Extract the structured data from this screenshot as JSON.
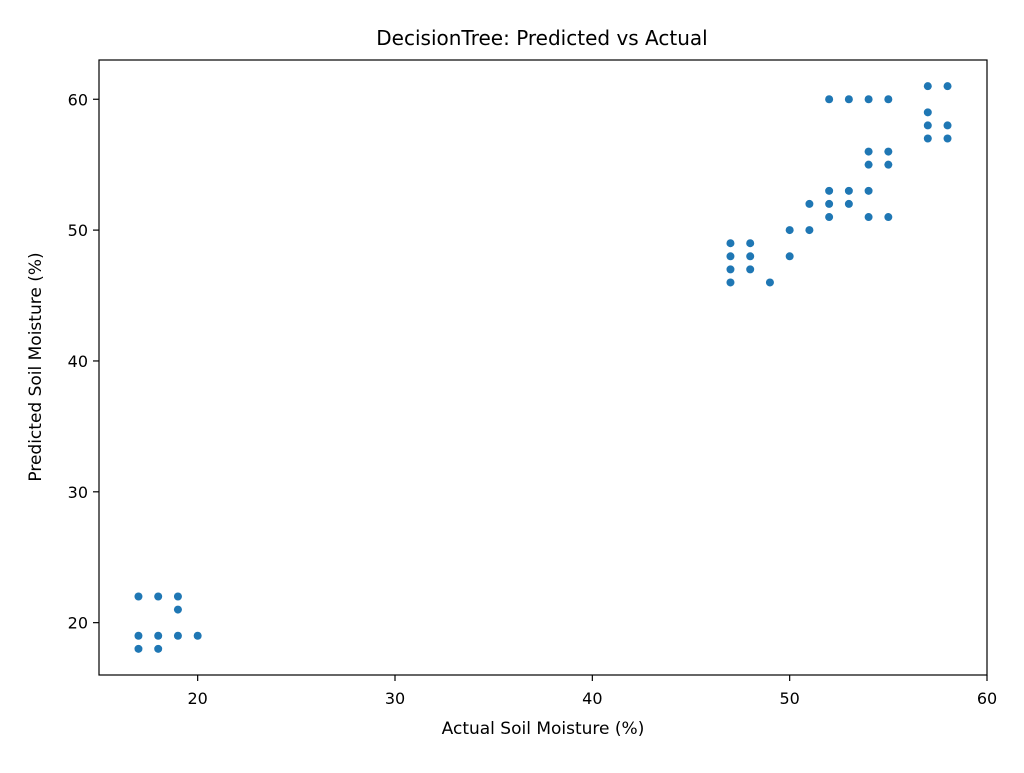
{
  "chart_data": {
    "type": "scatter",
    "title": "DecisionTree: Predicted vs Actual",
    "xlabel": "Actual Soil Moisture (%)",
    "ylabel": "Predicted Soil Moisture (%)",
    "xlim": [
      15,
      60
    ],
    "ylim": [
      16,
      63
    ],
    "xticks": [
      20,
      30,
      40,
      50,
      60
    ],
    "yticks": [
      20,
      30,
      40,
      50,
      60
    ],
    "grid": false,
    "marker_color": "#1f77b4",
    "series": [
      {
        "points": [
          [
            17,
            22
          ],
          [
            17,
            19
          ],
          [
            17,
            18
          ],
          [
            18,
            22
          ],
          [
            18,
            19
          ],
          [
            18,
            18
          ],
          [
            19,
            22
          ],
          [
            19,
            21
          ],
          [
            19,
            19
          ],
          [
            20,
            19
          ],
          [
            47,
            49
          ],
          [
            47,
            48
          ],
          [
            47,
            47
          ],
          [
            47,
            46
          ],
          [
            48,
            49
          ],
          [
            48,
            48
          ],
          [
            48,
            47
          ],
          [
            49,
            46
          ],
          [
            50,
            50
          ],
          [
            50,
            48
          ],
          [
            51,
            52
          ],
          [
            51,
            50
          ],
          [
            52,
            60
          ],
          [
            52,
            53
          ],
          [
            52,
            52
          ],
          [
            52,
            51
          ],
          [
            53,
            60
          ],
          [
            53,
            53
          ],
          [
            53,
            52
          ],
          [
            54,
            60
          ],
          [
            54,
            56
          ],
          [
            54,
            55
          ],
          [
            54,
            53
          ],
          [
            54,
            51
          ],
          [
            55,
            60
          ],
          [
            55,
            56
          ],
          [
            55,
            55
          ],
          [
            55,
            51
          ],
          [
            57,
            61
          ],
          [
            57,
            59
          ],
          [
            57,
            58
          ],
          [
            57,
            57
          ],
          [
            58,
            61
          ],
          [
            58,
            58
          ],
          [
            58,
            57
          ]
        ]
      }
    ]
  }
}
